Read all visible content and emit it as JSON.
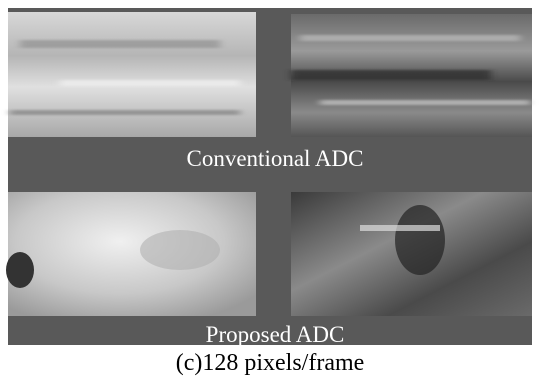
{
  "figure": {
    "panels": [
      {
        "label": "Conventional ADC"
      },
      {
        "label": "Proposed ADC"
      }
    ],
    "caption": "(c)128 pixels/frame"
  }
}
